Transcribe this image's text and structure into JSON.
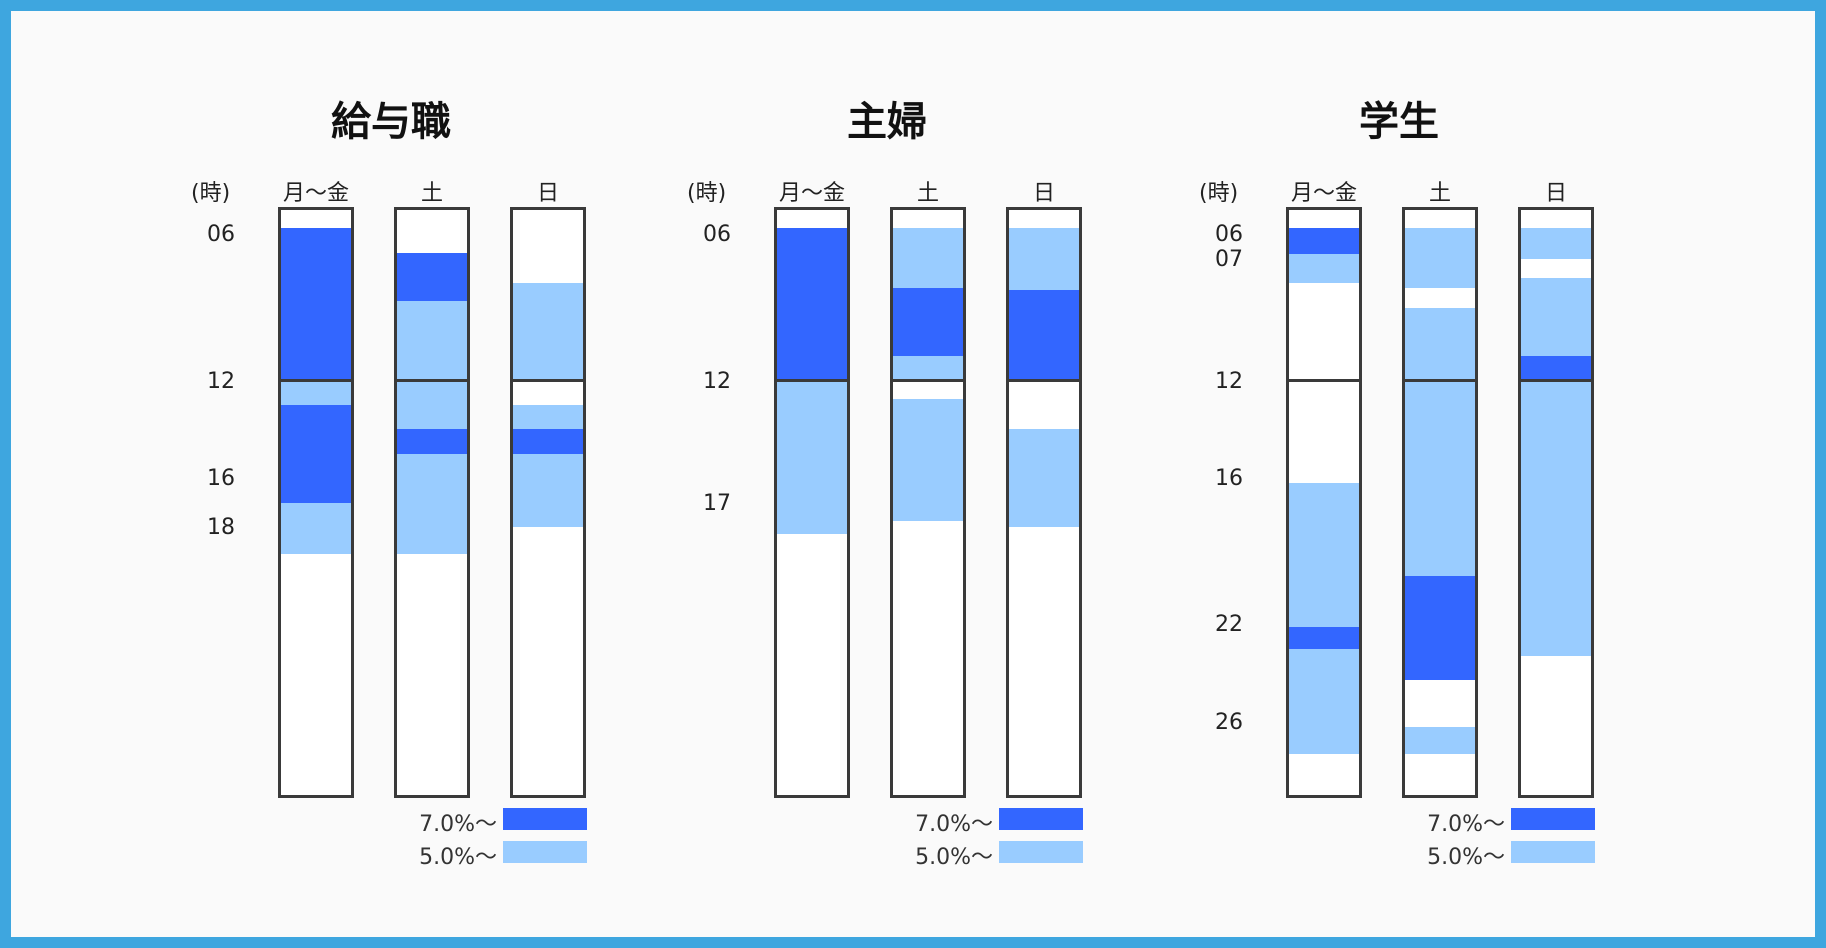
{
  "colors": {
    "high": "#3366ff",
    "mid": "#99ccff",
    "frame": "#3a3a3a",
    "border": "#3ea6df"
  },
  "axis": {
    "hour_unit": "(時)"
  },
  "legend": [
    {
      "label": "7.0%〜",
      "level": "high"
    },
    {
      "label": "5.0%〜",
      "level": "mid"
    }
  ],
  "chart_data": {
    "type": "table",
    "time_range_hours": [
      5,
      29
    ],
    "panels": [
      {
        "title": "給与職",
        "hour_labels": [
          "06",
          "12",
          "16",
          "18"
        ],
        "columns": [
          {
            "label": "月〜金",
            "segments": [
              {
                "start": 5.75,
                "end": 12,
                "level": "high"
              },
              {
                "start": 12,
                "end": 13,
                "level": "mid"
              },
              {
                "start": 13,
                "end": 17,
                "level": "high"
              },
              {
                "start": 17,
                "end": 19.1,
                "level": "mid"
              }
            ]
          },
          {
            "label": "土",
            "segments": [
              {
                "start": 6.75,
                "end": 8.75,
                "level": "high"
              },
              {
                "start": 8.75,
                "end": 12,
                "level": "mid"
              },
              {
                "start": 12,
                "end": 14,
                "level": "mid"
              },
              {
                "start": 14,
                "end": 15,
                "level": "high"
              },
              {
                "start": 15,
                "end": 19.1,
                "level": "mid"
              }
            ]
          },
          {
            "label": "日",
            "segments": [
              {
                "start": 8,
                "end": 12,
                "level": "mid"
              },
              {
                "start": 13,
                "end": 14,
                "level": "mid"
              },
              {
                "start": 14,
                "end": 15,
                "level": "high"
              },
              {
                "start": 15,
                "end": 18,
                "level": "mid"
              }
            ]
          }
        ]
      },
      {
        "title": "主婦",
        "hour_labels": [
          "06",
          "12",
          "17"
        ],
        "columns": [
          {
            "label": "月〜金",
            "segments": [
              {
                "start": 5.75,
                "end": 12,
                "level": "high"
              },
              {
                "start": 12,
                "end": 18.3,
                "level": "mid"
              }
            ]
          },
          {
            "label": "土",
            "segments": [
              {
                "start": 5.75,
                "end": 8.2,
                "level": "mid"
              },
              {
                "start": 8.2,
                "end": 11,
                "level": "high"
              },
              {
                "start": 11,
                "end": 12,
                "level": "mid"
              },
              {
                "start": 12.75,
                "end": 17.75,
                "level": "mid"
              }
            ]
          },
          {
            "label": "日",
            "segments": [
              {
                "start": 5.75,
                "end": 8.3,
                "level": "mid"
              },
              {
                "start": 8.3,
                "end": 12,
                "level": "high"
              },
              {
                "start": 14,
                "end": 18,
                "level": "mid"
              }
            ]
          }
        ]
      },
      {
        "title": "学生",
        "hour_labels": [
          "06",
          "07",
          "12",
          "16",
          "22",
          "26"
        ],
        "columns": [
          {
            "label": "月〜金",
            "segments": [
              {
                "start": 5.75,
                "end": 6.8,
                "level": "high"
              },
              {
                "start": 6.8,
                "end": 8,
                "level": "mid"
              },
              {
                "start": 16.2,
                "end": 22.1,
                "level": "mid"
              },
              {
                "start": 22.1,
                "end": 23,
                "level": "high"
              },
              {
                "start": 23,
                "end": 27.3,
                "level": "mid"
              }
            ]
          },
          {
            "label": "土",
            "segments": [
              {
                "start": 5.75,
                "end": 8.2,
                "level": "mid"
              },
              {
                "start": 9,
                "end": 12,
                "level": "mid"
              },
              {
                "start": 12,
                "end": 20,
                "level": "mid"
              },
              {
                "start": 20,
                "end": 24.3,
                "level": "high"
              },
              {
                "start": 26.2,
                "end": 27.3,
                "level": "mid"
              }
            ]
          },
          {
            "label": "日",
            "segments": [
              {
                "start": 5.75,
                "end": 7,
                "level": "mid"
              },
              {
                "start": 7.8,
                "end": 11,
                "level": "mid"
              },
              {
                "start": 11,
                "end": 12,
                "level": "high"
              },
              {
                "start": 12,
                "end": 23.3,
                "level": "mid"
              }
            ]
          }
        ]
      }
    ]
  }
}
